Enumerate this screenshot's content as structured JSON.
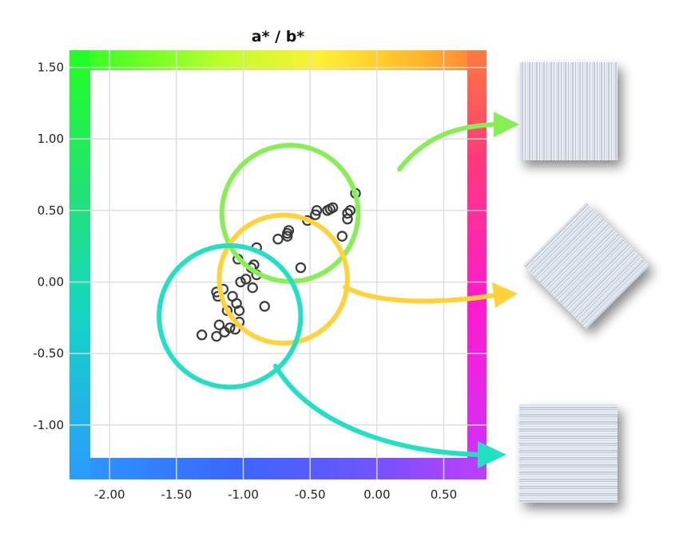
{
  "chart_data": {
    "type": "scatter",
    "title": "a* / b*",
    "xlabel": "",
    "ylabel": "",
    "xlim": [
      -2.3,
      0.82
    ],
    "ylim": [
      -1.38,
      1.62
    ],
    "x_ticks": [
      -2.0,
      -1.5,
      -1.0,
      -0.5,
      0.0,
      0.5
    ],
    "x_tick_labels": [
      "-2.00",
      "-1.50",
      "-1.00",
      "-0.50",
      "0.00",
      "0.50"
    ],
    "y_ticks": [
      1.5,
      1.0,
      0.5,
      0.0,
      -0.5,
      -1.0
    ],
    "y_tick_labels": [
      "1.50",
      "1.00",
      "0.50",
      "0.00",
      "-0.50",
      "-1.00"
    ],
    "grid": true,
    "background": "hue color-wheel frame (green top-left, yellow/orange top, magenta right, purple/blue bottom, cyan left)",
    "points": [
      [
        -1.31,
        -0.37
      ],
      [
        -1.2,
        -0.38
      ],
      [
        -1.18,
        -0.3
      ],
      [
        -1.14,
        -0.35
      ],
      [
        -1.1,
        -0.32
      ],
      [
        -1.06,
        -0.33
      ],
      [
        -1.03,
        -0.28
      ],
      [
        -1.2,
        -0.07
      ],
      [
        -1.19,
        -0.1
      ],
      [
        -1.15,
        -0.05
      ],
      [
        -1.12,
        -0.2
      ],
      [
        -1.08,
        -0.1
      ],
      [
        -1.05,
        -0.15
      ],
      [
        -1.03,
        -0.2
      ],
      [
        -1.02,
        0.0
      ],
      [
        -0.98,
        0.02
      ],
      [
        -0.94,
        0.1
      ],
      [
        -0.92,
        0.12
      ],
      [
        -0.9,
        0.05
      ],
      [
        -0.93,
        -0.04
      ],
      [
        -1.04,
        0.16
      ],
      [
        -0.9,
        0.24
      ],
      [
        -0.84,
        -0.17
      ],
      [
        -0.74,
        0.3
      ],
      [
        -0.67,
        0.34
      ],
      [
        -0.66,
        0.36
      ],
      [
        -0.67,
        0.32
      ],
      [
        -0.57,
        0.1
      ],
      [
        -0.52,
        0.43
      ],
      [
        -0.46,
        0.47
      ],
      [
        -0.45,
        0.5
      ],
      [
        -0.37,
        0.5
      ],
      [
        -0.35,
        0.51
      ],
      [
        -0.33,
        0.52
      ],
      [
        -0.26,
        0.32
      ],
      [
        -0.22,
        0.44
      ],
      [
        -0.22,
        0.48
      ],
      [
        -0.2,
        0.5
      ],
      [
        -0.16,
        0.62
      ]
    ],
    "point_color": "#3a3a3a",
    "annotations": [
      {
        "type": "circle",
        "color": "#88ee55",
        "center": [
          -0.65,
          0.48
        ],
        "radius_x": 0.51,
        "target": "texture-top"
      },
      {
        "type": "circle",
        "color": "#ffd23a",
        "center": [
          -0.7,
          0.02
        ],
        "radius_x": 0.48,
        "target": "texture-middle"
      },
      {
        "type": "circle",
        "color": "#22e0c4",
        "center": [
          -1.1,
          -0.24
        ],
        "radius_x": 0.53,
        "target": "texture-bottom"
      }
    ]
  },
  "thumbnails": [
    {
      "name": "texture-top",
      "orientation": "vertical-lines",
      "rotation_deg": 0
    },
    {
      "name": "texture-middle",
      "orientation": "diagonal-lines",
      "rotation_deg": 45
    },
    {
      "name": "texture-bottom",
      "orientation": "horizontal-lines",
      "rotation_deg": 0
    }
  ]
}
